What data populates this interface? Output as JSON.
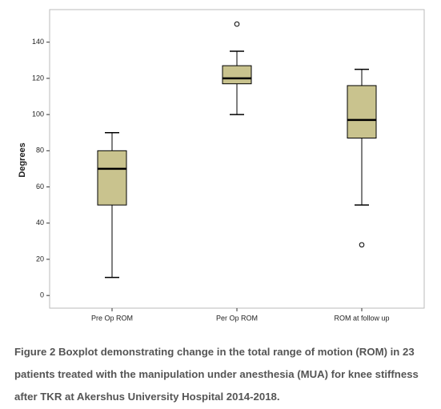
{
  "chart_data": {
    "type": "box",
    "y_label": "Degrees",
    "categories": [
      "Pre Op ROM",
      "Per Op ROM",
      "ROM at follow up"
    ],
    "whisker_low": [
      10,
      100,
      50
    ],
    "q1": [
      50,
      117,
      87
    ],
    "median": [
      70,
      120,
      97
    ],
    "q3": [
      80,
      127,
      116
    ],
    "whisker_high": [
      90,
      135,
      125
    ],
    "outliers": [
      [],
      [
        150
      ],
      [
        28
      ]
    ],
    "color": "#c9c38e",
    "ylim": [
      -7,
      158
    ],
    "yticks": [
      0,
      20,
      40,
      60,
      80,
      100,
      120,
      140
    ],
    "caption": "Figure 2 Boxplot demonstrating change in the total range of motion (ROM) in 23 patients treated with the manipulation under anesthesia (MUA) for knee stiffness after TKR at Akershus University Hospital 2014-2018."
  }
}
